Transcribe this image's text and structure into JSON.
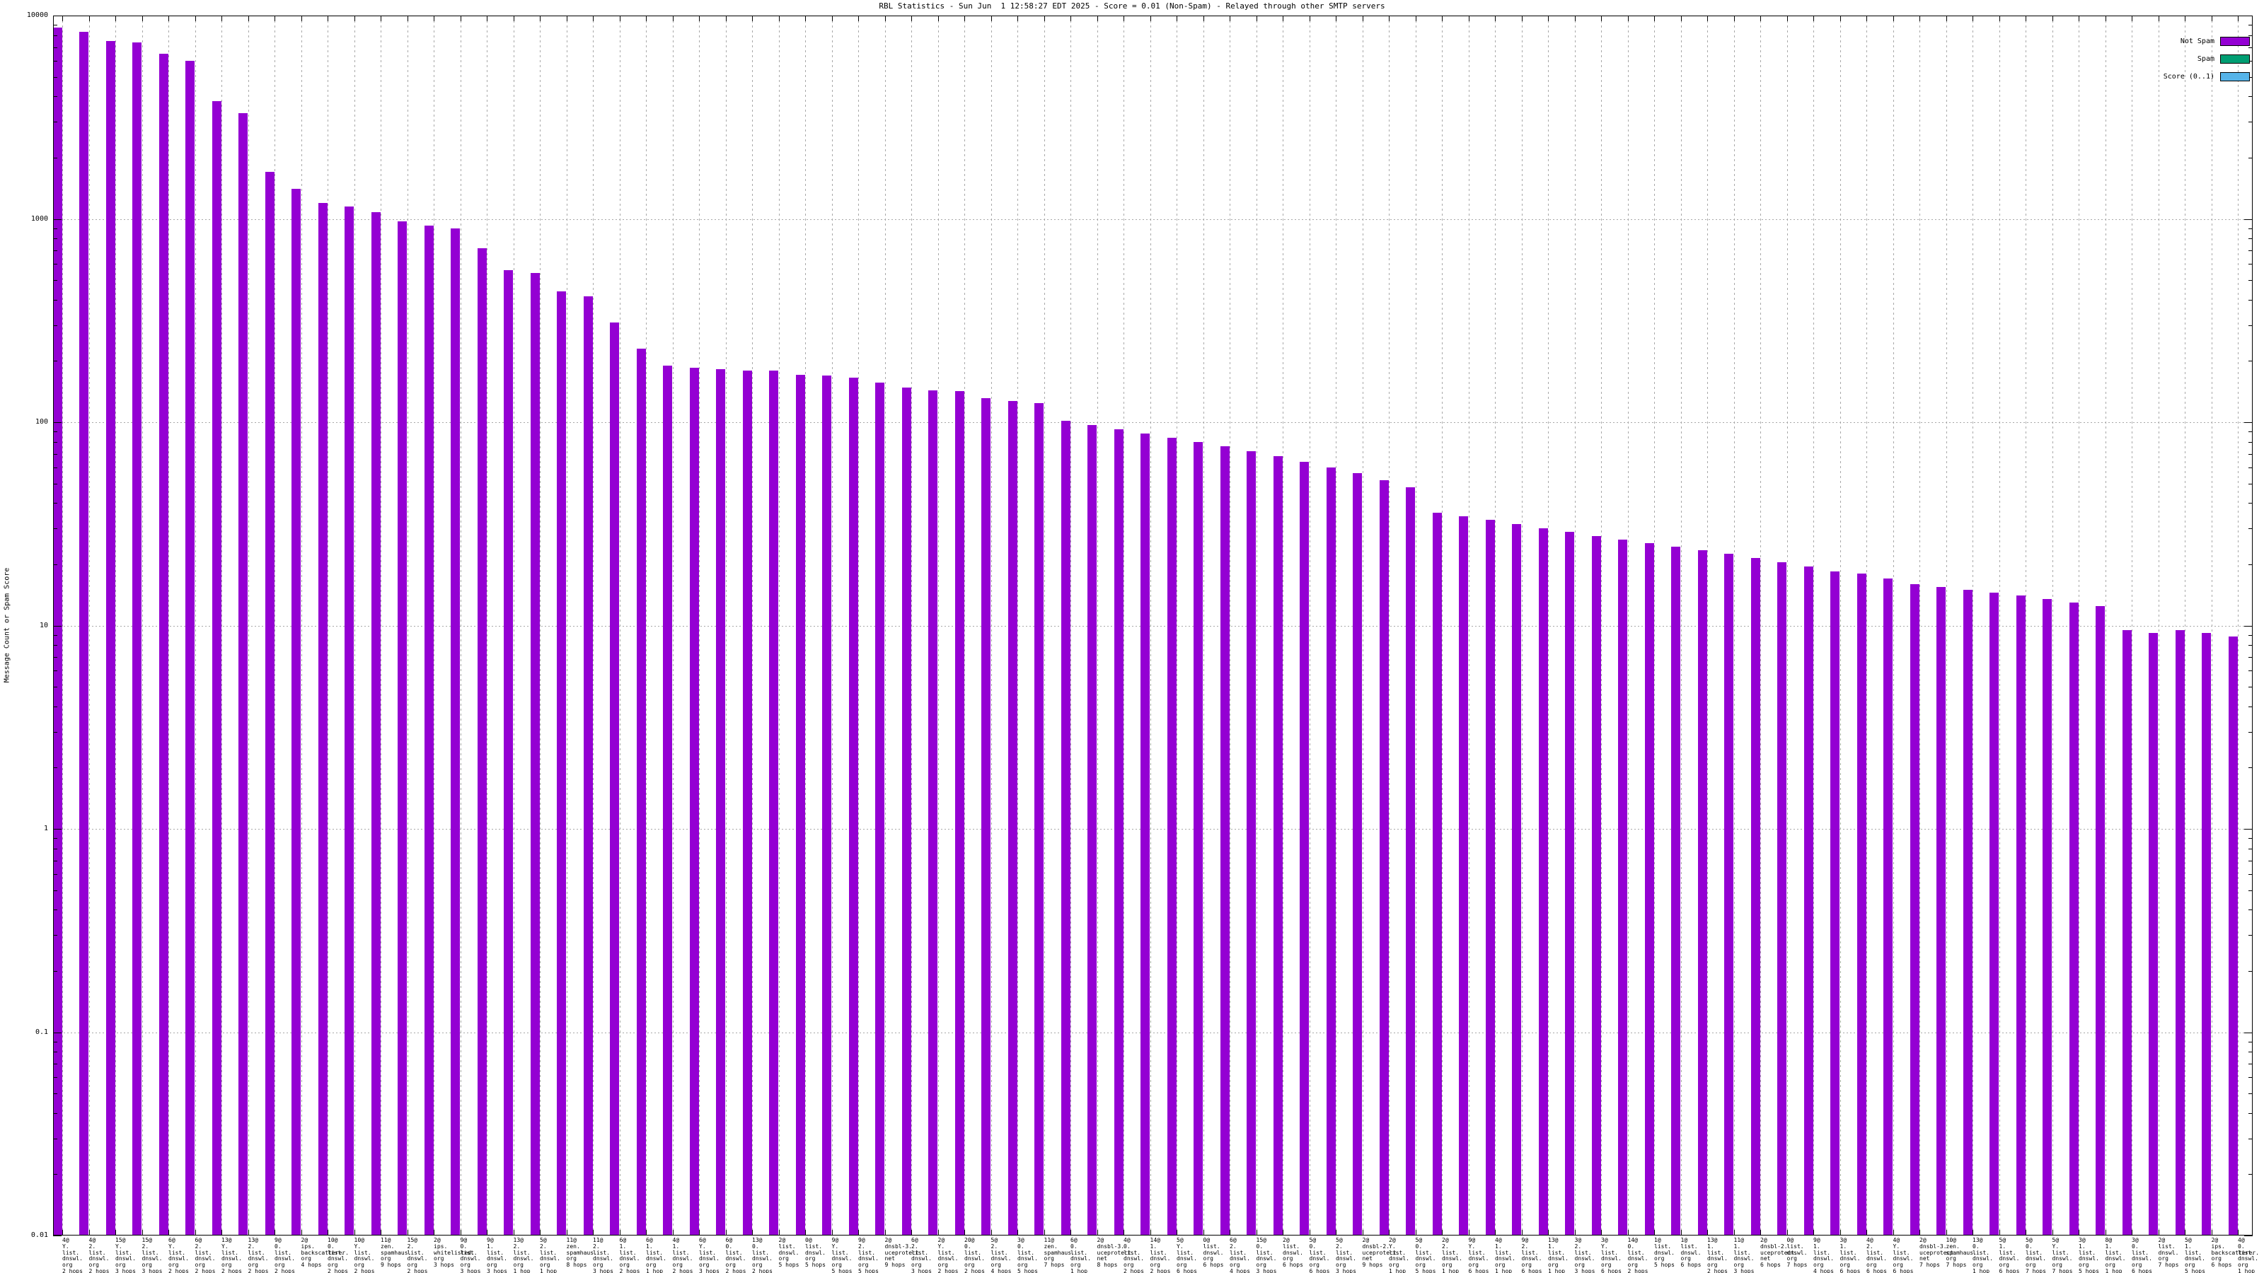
{
  "chart_data": {
    "type": "bar",
    "title": "RBL Statistics - Sun Jun  1 12:58:27 EDT 2025 - Score = 0.01 (Non-Spam) - Relayed through other SMTP servers",
    "ylabel": "Message Count or Spam Score",
    "xlabel": "",
    "y_scale": "log",
    "ylim": [
      0.01,
      10000
    ],
    "ytick_labels": [
      "10000",
      "1000",
      "100",
      "10",
      "1",
      "0.1",
      "0.01"
    ],
    "grid": true,
    "legend_position": "top-right",
    "bar_color_name": "Not Spam",
    "bars": [
      {
        "label": "4@Y.list.dnswl.org 2 hops",
        "value": 8700
      },
      {
        "label": "4@2.list.dnswl.org 2 hops",
        "value": 8300
      },
      {
        "label": "15@Y.list.dnswl.org 3 hops",
        "value": 7500
      },
      {
        "label": "15@2.list.dnswl.org 3 hops",
        "value": 7400
      },
      {
        "label": "6@Y.list.dnswl.org 2 hops",
        "value": 6500
      },
      {
        "label": "6@2.list.dnswl.org 2 hops",
        "value": 6000
      },
      {
        "label": "13@Y.list.dnswl.org 2 hops",
        "value": 3800
      },
      {
        "label": "13@2.list.dnswl.org 2 hops",
        "value": 3300
      },
      {
        "label": "9@0.list.dnswl.org 2 hops",
        "value": 1700
      },
      {
        "label": "2@ips.backscatterer.org 4 hops",
        "value": 1400
      },
      {
        "label": "10@0.list.dnswl.org 2 hops",
        "value": 1200
      },
      {
        "label": "10@Y.list.dnswl.org 2 hops",
        "value": 1150
      },
      {
        "label": "11@zen.spamhaus.org 9 hops",
        "value": 1080
      },
      {
        "label": "15@2.list.dnswl.org 2 hops",
        "value": 970
      },
      {
        "label": "2@ips.whitelisted.org 3 hops",
        "value": 930
      },
      {
        "label": "9@0.list.dnswl.org 3 hops",
        "value": 900
      },
      {
        "label": "9@1.list.dnswl.org 3 hops",
        "value": 720
      },
      {
        "label": "13@2.list.dnswl.org 1 hop",
        "value": 560
      },
      {
        "label": "5@2.list.dnswl.org 1 hop",
        "value": 540
      },
      {
        "label": "11@zen.spamhaus.org 8 hops",
        "value": 440
      },
      {
        "label": "11@2.list.dnswl.org 3 hops",
        "value": 415
      },
      {
        "label": "6@1.list.dnswl.org 2 hops",
        "value": 310
      },
      {
        "label": "6@1.list.dnswl.org 1 hop",
        "value": 230
      },
      {
        "label": "4@1.list.dnswl.org 2 hops",
        "value": 190
      },
      {
        "label": "6@Y.list.dnswl.org 3 hops",
        "value": 186
      },
      {
        "label": "6@0.list.dnswl.org 2 hops",
        "value": 182
      },
      {
        "label": "13@0.list.dnswl.org 2 hops",
        "value": 180
      },
      {
        "label": "2@list.dnswl.org 5 hops",
        "value": 179
      },
      {
        "label": "0@list.dnswl.org 5 hops",
        "value": 171
      },
      {
        "label": "9@Y.list.dnswl.org 5 hops",
        "value": 170
      },
      {
        "label": "9@2.list.dnswl.org 5 hops",
        "value": 166
      },
      {
        "label": "2@dnsbl-3.uceprotect.net 9 hops",
        "value": 157
      },
      {
        "label": "6@2.list.dnswl.org 3 hops",
        "value": 148
      },
      {
        "label": "2@Y.list.dnswl.org 2 hops",
        "value": 143
      },
      {
        "label": "20@0.list.dnswl.org 2 hops",
        "value": 142
      },
      {
        "label": "5@2.list.dnswl.org 4 hops",
        "value": 131
      },
      {
        "label": "3@0.list.dnswl.org 5 hops",
        "value": 127
      },
      {
        "label": "11@zen.spamhaus.org 7 hops",
        "value": 124
      },
      {
        "label": "6@0.list.dnswl.org 1 hop",
        "value": 102
      },
      {
        "label": "2@dnsbl-3.uceprotect.net 8 hops",
        "value": 97
      },
      {
        "label": "4@0.list.dnswl.org 2 hops",
        "value": 92
      },
      {
        "label": "14@1.list.dnswl.org 2 hops",
        "value": 88
      },
      {
        "label": "5@Y.list.dnswl.org 6 hops",
        "value": 84
      },
      {
        "label": "0@list.dnswl.org 6 hops",
        "value": 80
      },
      {
        "label": "6@2.list.dnswl.org 4 hops",
        "value": 76
      },
      {
        "label": "15@0.list.dnswl.org 3 hops",
        "value": 72
      },
      {
        "label": "2@list.dnswl.org 6 hops",
        "value": 68
      },
      {
        "label": "5@0.list.dnswl.org 6 hops",
        "value": 64
      },
      {
        "label": "5@2.list.dnswl.org 3 hops",
        "value": 60
      },
      {
        "label": "2@dnsbl-2.uceprotect.net 9 hops",
        "value": 56
      },
      {
        "label": "2@Y.list.dnswl.org 1 hop",
        "value": 52
      },
      {
        "label": "5@0.list.dnswl.org 5 hops",
        "value": 48
      },
      {
        "label": "2@2.list.dnswl.org 1 hop",
        "value": 36
      },
      {
        "label": "9@Y.list.dnswl.org 6 hops",
        "value": 34.5
      },
      {
        "label": "4@1.list.dnswl.org 1 hop",
        "value": 33
      },
      {
        "label": "9@2.list.dnswl.org 6 hops",
        "value": 31.5
      },
      {
        "label": "13@1.list.dnswl.org 1 hop",
        "value": 30
      },
      {
        "label": "3@2.list.dnswl.org 3 hops",
        "value": 29
      },
      {
        "label": "3@Y.list.dnswl.org 6 hops",
        "value": 27.5
      },
      {
        "label": "14@0.list.dnswl.org 2 hops",
        "value": 26.5
      },
      {
        "label": "1@list.dnswl.org 5 hops",
        "value": 25.5
      },
      {
        "label": "1@list.dnswl.org 6 hops",
        "value": 24.5
      },
      {
        "label": "13@1.list.dnswl.org 2 hops",
        "value": 23.5
      },
      {
        "label": "11@1.list.dnswl.org 3 hops",
        "value": 22.5
      },
      {
        "label": "2@dnsbl-2.uceprotect.net 6 hops",
        "value": 21.5
      },
      {
        "label": "0@list.dnswl.org 7 hops",
        "value": 20.5
      },
      {
        "label": "9@1.list.dnswl.org 4 hops",
        "value": 19.5
      },
      {
        "label": "3@1.list.dnswl.org 6 hops",
        "value": 18.5
      },
      {
        "label": "4@2.list.dnswl.org 6 hops",
        "value": 18
      },
      {
        "label": "4@Y.list.dnswl.org 6 hops",
        "value": 17
      },
      {
        "label": "2@dnsbl-3.uceprotect.net 7 hops",
        "value": 16
      },
      {
        "label": "10@zen.spamhaus.org 7 hops",
        "value": 15.5
      },
      {
        "label": "13@0.list.dnswl.org 1 hop",
        "value": 15
      },
      {
        "label": "5@1.list.dnswl.org 6 hops",
        "value": 14.5
      },
      {
        "label": "5@0.list.dnswl.org 7 hops",
        "value": 14
      },
      {
        "label": "5@Y.list.dnswl.org 7 hops",
        "value": 13.5
      },
      {
        "label": "3@1.list.dnswl.org 5 hops",
        "value": 13
      },
      {
        "label": "8@1.list.dnswl.org 1 hop",
        "value": 12.5
      },
      {
        "label": "3@0.list.dnswl.org 6 hops",
        "value": 9.5
      },
      {
        "label": "2@list.dnswl.org 7 hops",
        "value": 9.2
      },
      {
        "label": "5@1.list.dnswl.org 5 hops",
        "value": 9.5
      },
      {
        "label": "2@ips.backscatterer.org 6 hops",
        "value": 9.2
      },
      {
        "label": "4@0.list.dnswl.org 1 hop",
        "value": 8.8
      }
    ]
  },
  "legend": [
    {
      "label": "Not Spam",
      "color": "#9400d3"
    },
    {
      "label": "Spam",
      "color": "#009e73"
    },
    {
      "label": "Score (0..1)",
      "color": "#56b4e9"
    }
  ],
  "colors": {
    "not_spam": "#9400d3",
    "spam": "#009e73",
    "score": "#56b4e9",
    "grid": "#a8a8a8",
    "axis": "#000000",
    "background": "#ffffff"
  }
}
